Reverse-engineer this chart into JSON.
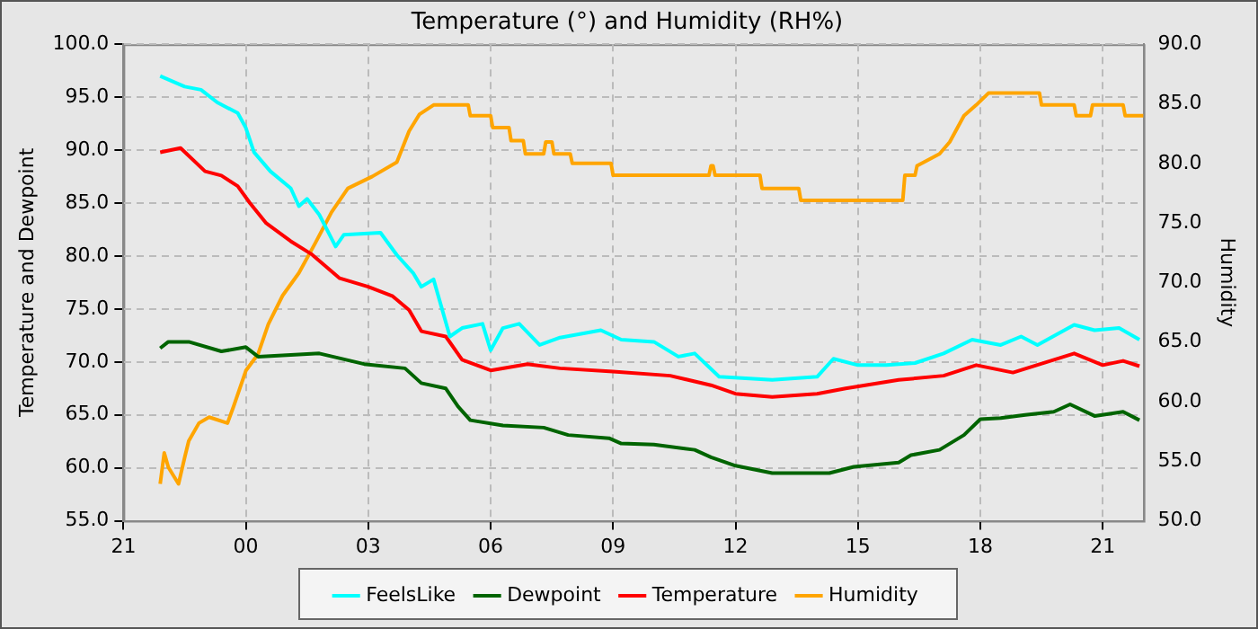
{
  "chart_data": {
    "type": "line",
    "title": "Temperature (°) and Humidity (RH%)",
    "ylabel": "Temperature and Dewpoint",
    "y2label": "Humidity",
    "xlim": [
      "2000-01-01T21:00",
      "2000-01-02T22:00"
    ],
    "xticks": [
      {
        "value": "2000-01-01T21:00",
        "label": "21"
      },
      {
        "value": "2000-01-02T00:00",
        "label": "00"
      },
      {
        "value": "2000-01-02T03:00",
        "label": "03"
      },
      {
        "value": "2000-01-02T06:00",
        "label": "06"
      },
      {
        "value": "2000-01-02T09:00",
        "label": "09"
      },
      {
        "value": "2000-01-02T12:00",
        "label": "12"
      },
      {
        "value": "2000-01-02T15:00",
        "label": "15"
      },
      {
        "value": "2000-01-02T18:00",
        "label": "18"
      },
      {
        "value": "2000-01-02T21:00",
        "label": "21"
      }
    ],
    "ylim": [
      55,
      100
    ],
    "yticks": [
      {
        "value": 55,
        "label": "55.0"
      },
      {
        "value": 60,
        "label": "60.0"
      },
      {
        "value": 65,
        "label": "65.0"
      },
      {
        "value": 70,
        "label": "70.0"
      },
      {
        "value": 75,
        "label": "75.0"
      },
      {
        "value": 80,
        "label": "80.0"
      },
      {
        "value": 85,
        "label": "85.0"
      },
      {
        "value": 90,
        "label": "90.0"
      },
      {
        "value": 95,
        "label": "95.0"
      },
      {
        "value": 100,
        "label": "100.0"
      }
    ],
    "y2lim": [
      50,
      90
    ],
    "y2ticks": [
      {
        "value": 50,
        "label": "50.0"
      },
      {
        "value": 55,
        "label": "55.0"
      },
      {
        "value": 60,
        "label": "60.0"
      },
      {
        "value": 65,
        "label": "65.0"
      },
      {
        "value": 70,
        "label": "70.0"
      },
      {
        "value": 75,
        "label": "75.0"
      },
      {
        "value": 80,
        "label": "80.0"
      },
      {
        "value": 85,
        "label": "85.0"
      },
      {
        "value": 90,
        "label": "90.0"
      }
    ],
    "grid": true,
    "legend": "bottom",
    "marker": "none",
    "line_style": "solid",
    "series": [
      {
        "name": "FeelsLike",
        "color": "#00ffff",
        "x": [
          "2000-01-01T21:54",
          "2000-01-01T22:30",
          "2000-01-01T22:54",
          "2000-01-01T23:18",
          "2000-01-01T23:48",
          "2000-01-02T00:00",
          "2000-01-02T00:12",
          "2000-01-02T00:36",
          "2000-01-02T01:06",
          "2000-01-02T01:18",
          "2000-01-02T01:30",
          "2000-01-02T01:48",
          "2000-01-02T02:12",
          "2000-01-02T02:24",
          "2000-01-02T03:18",
          "2000-01-02T03:42",
          "2000-01-02T04:06",
          "2000-01-02T04:18",
          "2000-01-02T04:36",
          "2000-01-02T05:00",
          "2000-01-02T05:18",
          "2000-01-02T05:48",
          "2000-01-02T06:00",
          "2000-01-02T06:18",
          "2000-01-02T06:42",
          "2000-01-02T07:12",
          "2000-01-02T07:42",
          "2000-01-02T08:42",
          "2000-01-02T09:12",
          "2000-01-02T10:00",
          "2000-01-02T10:36",
          "2000-01-02T11:00",
          "2000-01-02T11:36",
          "2000-01-02T12:54",
          "2000-01-02T14:00",
          "2000-01-02T14:24",
          "2000-01-02T15:00",
          "2000-01-02T15:42",
          "2000-01-02T16:24",
          "2000-01-02T17:06",
          "2000-01-02T17:48",
          "2000-01-02T18:30",
          "2000-01-02T19:00",
          "2000-01-02T19:24",
          "2000-01-02T20:18",
          "2000-01-02T20:48",
          "2000-01-02T21:24",
          "2000-01-02T21:54"
        ],
        "values": [
          97.0,
          96.0,
          95.7,
          94.5,
          93.5,
          92.1,
          89.8,
          88.0,
          86.4,
          84.7,
          85.4,
          83.9,
          80.9,
          82.0,
          82.2,
          80.1,
          78.4,
          77.1,
          77.8,
          72.4,
          73.2,
          73.6,
          71.1,
          73.2,
          73.6,
          71.6,
          72.3,
          73.0,
          72.1,
          71.9,
          70.5,
          70.8,
          68.6,
          68.3,
          68.6,
          70.3,
          69.7,
          69.7,
          69.9,
          70.8,
          72.1,
          71.6,
          72.4,
          71.6,
          73.5,
          73.0,
          73.2,
          72.1
        ]
      },
      {
        "name": "Dewpoint",
        "color": "#006400",
        "x": [
          "2000-01-01T21:54",
          "2000-01-01T22:06",
          "2000-01-01T22:36",
          "2000-01-01T23:24",
          "2000-01-02T00:00",
          "2000-01-02T00:18",
          "2000-01-02T01:48",
          "2000-01-02T02:54",
          "2000-01-02T03:54",
          "2000-01-02T04:18",
          "2000-01-02T04:54",
          "2000-01-02T05:12",
          "2000-01-02T05:30",
          "2000-01-02T06:18",
          "2000-01-02T07:18",
          "2000-01-02T07:54",
          "2000-01-02T08:54",
          "2000-01-02T09:12",
          "2000-01-02T10:00",
          "2000-01-02T11:00",
          "2000-01-02T11:24",
          "2000-01-02T12:00",
          "2000-01-02T12:54",
          "2000-01-02T14:18",
          "2000-01-02T14:54",
          "2000-01-02T16:00",
          "2000-01-02T16:18",
          "2000-01-02T17:00",
          "2000-01-02T17:36",
          "2000-01-02T18:00",
          "2000-01-02T18:30",
          "2000-01-02T19:06",
          "2000-01-02T19:48",
          "2000-01-02T20:12",
          "2000-01-02T20:48",
          "2000-01-02T21:30",
          "2000-01-02T21:54"
        ],
        "values": [
          71.3,
          71.9,
          71.9,
          71.0,
          71.4,
          70.5,
          70.8,
          69.8,
          69.4,
          68.0,
          67.5,
          65.8,
          64.5,
          64.0,
          63.8,
          63.1,
          62.8,
          62.3,
          62.2,
          61.7,
          61.0,
          60.2,
          59.5,
          59.5,
          60.1,
          60.5,
          61.2,
          61.7,
          63.1,
          64.6,
          64.7,
          65.0,
          65.3,
          66.0,
          64.9,
          65.3,
          64.5
        ]
      },
      {
        "name": "Temperature",
        "color": "#ff0000",
        "x": [
          "2000-01-01T21:54",
          "2000-01-01T22:24",
          "2000-01-01T23:00",
          "2000-01-01T23:24",
          "2000-01-01T23:48",
          "2000-01-02T00:06",
          "2000-01-02T00:30",
          "2000-01-02T01:06",
          "2000-01-02T01:36",
          "2000-01-02T02:18",
          "2000-01-02T03:00",
          "2000-01-02T03:36",
          "2000-01-02T04:00",
          "2000-01-02T04:18",
          "2000-01-02T04:54",
          "2000-01-02T05:18",
          "2000-01-02T06:00",
          "2000-01-02T06:54",
          "2000-01-02T07:42",
          "2000-01-02T09:00",
          "2000-01-02T10:24",
          "2000-01-02T11:24",
          "2000-01-02T12:00",
          "2000-01-02T12:54",
          "2000-01-02T14:00",
          "2000-01-02T14:42",
          "2000-01-02T16:00",
          "2000-01-02T17:06",
          "2000-01-02T17:54",
          "2000-01-02T18:48",
          "2000-01-02T20:18",
          "2000-01-02T21:00",
          "2000-01-02T21:30",
          "2000-01-02T21:54"
        ],
        "values": [
          89.8,
          90.2,
          88.0,
          87.6,
          86.6,
          85.0,
          83.1,
          81.4,
          80.2,
          77.9,
          77.1,
          76.2,
          74.9,
          72.9,
          72.4,
          70.2,
          69.2,
          69.8,
          69.4,
          69.1,
          68.7,
          67.8,
          67.0,
          66.7,
          67.0,
          67.5,
          68.3,
          68.7,
          69.7,
          69.0,
          70.8,
          69.7,
          70.1,
          69.6
        ]
      },
      {
        "name": "Humidity",
        "color": "#ffa500",
        "axis": "y2",
        "x": [
          "2000-01-01T21:54",
          "2000-01-01T22:00",
          "2000-01-01T22:06",
          "2000-01-01T22:21",
          "2000-01-01T22:30",
          "2000-01-01T22:36",
          "2000-01-01T22:51",
          "2000-01-01T23:06",
          "2000-01-01T23:33",
          "2000-01-01T23:42",
          "2000-01-02T00:00",
          "2000-01-02T00:18",
          "2000-01-02T00:33",
          "2000-01-02T00:54",
          "2000-01-02T01:18",
          "2000-01-02T01:42",
          "2000-01-02T02:06",
          "2000-01-02T02:30",
          "2000-01-02T03:06",
          "2000-01-02T03:42",
          "2000-01-02T04:00",
          "2000-01-02T04:15",
          "2000-01-02T04:36",
          "2000-01-02T05:27",
          "2000-01-02T05:30",
          "2000-01-02T06:00",
          "2000-01-02T06:03",
          "2000-01-02T06:27",
          "2000-01-02T06:30",
          "2000-01-02T06:48",
          "2000-01-02T06:51",
          "2000-01-02T07:18",
          "2000-01-02T07:21",
          "2000-01-02T07:30",
          "2000-01-02T07:33",
          "2000-01-02T07:57",
          "2000-01-02T08:00",
          "2000-01-02T08:57",
          "2000-01-02T09:00",
          "2000-01-02T11:21",
          "2000-01-02T11:24",
          "2000-01-02T11:27",
          "2000-01-02T11:30",
          "2000-01-02T12:36",
          "2000-01-02T12:39",
          "2000-01-02T13:33",
          "2000-01-02T13:36",
          "2000-01-02T16:06",
          "2000-01-02T16:09",
          "2000-01-02T16:24",
          "2000-01-02T16:27",
          "2000-01-02T17:00",
          "2000-01-02T17:15",
          "2000-01-02T17:36",
          "2000-01-02T17:54",
          "2000-01-02T18:12",
          "2000-01-02T18:30",
          "2000-01-02T19:27",
          "2000-01-02T19:30",
          "2000-01-02T20:18",
          "2000-01-02T20:21",
          "2000-01-02T20:42",
          "2000-01-02T20:45",
          "2000-01-02T21:30",
          "2000-01-02T21:33",
          "2000-01-02T22:00"
        ],
        "values": [
          53.1,
          55.7,
          54.5,
          53.1,
          55.3,
          56.7,
          58.2,
          58.7,
          58.2,
          59.6,
          62.6,
          64.0,
          66.5,
          68.9,
          70.8,
          73.3,
          75.9,
          77.9,
          78.9,
          80.1,
          82.7,
          84.1,
          84.9,
          84.9,
          84.0,
          84.0,
          83.0,
          83.0,
          81.9,
          81.9,
          80.8,
          80.8,
          81.8,
          81.8,
          80.8,
          80.8,
          80.0,
          80.0,
          79.0,
          79.0,
          79.8,
          79.8,
          79.0,
          79.0,
          77.9,
          77.9,
          76.9,
          76.9,
          79.0,
          79.0,
          79.8,
          80.8,
          81.8,
          84.0,
          84.9,
          85.9,
          85.9,
          85.9,
          84.9,
          84.9,
          84.0,
          84.0,
          84.9,
          84.9,
          84.0,
          84.0
        ]
      }
    ]
  }
}
